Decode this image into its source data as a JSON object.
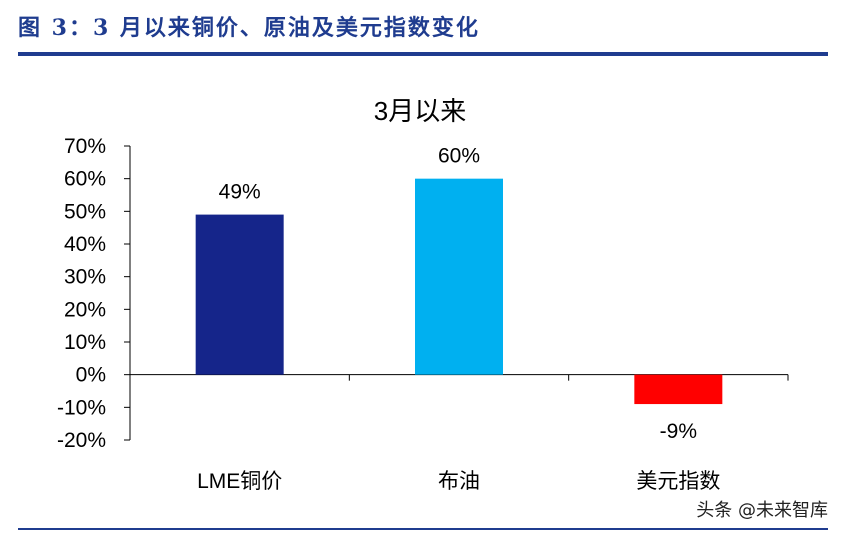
{
  "figure_title": "图 3：3 月以来铜价、原油及美元指数变化",
  "watermark": "头条 @未来智库",
  "colors": {
    "title": "#1F3C8F",
    "rule": "#1F3C8F",
    "axis": "#000000"
  },
  "chart_data": {
    "type": "bar",
    "title": "3月以来",
    "categories": [
      "LME铜价",
      "布油",
      "美元指数"
    ],
    "values": [
      49,
      60,
      -9
    ],
    "data_labels": [
      "49%",
      "60%",
      "-9%"
    ],
    "bar_colors": [
      "#15258A",
      "#00B0F0",
      "#FF0000"
    ],
    "ylim": [
      -20,
      70
    ],
    "yticks": [
      70,
      60,
      50,
      40,
      30,
      20,
      10,
      0,
      -10,
      -20
    ],
    "ytick_labels": [
      "70%",
      "60%",
      "50%",
      "40%",
      "30%",
      "20%",
      "10%",
      "0%",
      "-10%",
      "-20%"
    ],
    "xlabel": "",
    "ylabel": "",
    "grid": false,
    "legend": false
  }
}
